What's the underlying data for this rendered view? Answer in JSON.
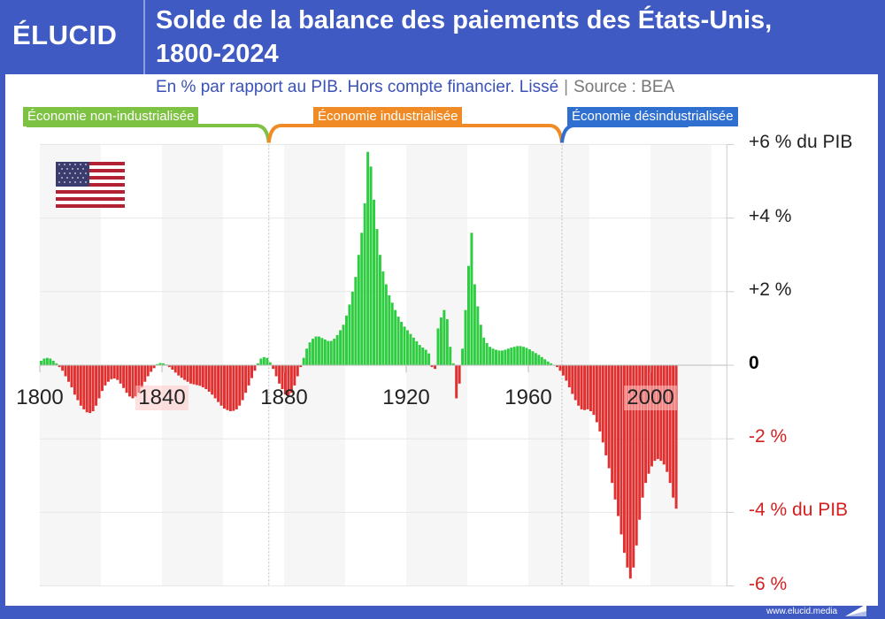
{
  "header": {
    "logo": "ÉLUCID",
    "title_line1": "Solde de la balance des paiements des États-Unis,",
    "title_line2": "1800-2024"
  },
  "subtitle": {
    "text": "En % par rapport au PIB. Hors compte financier. Lissé",
    "separator": "|",
    "source": "Source : BEA"
  },
  "eras": [
    {
      "label": "Économie non-industrialisée",
      "color": "#7dc242",
      "start": 1800,
      "end": 1875
    },
    {
      "label": "Économie industrialisée",
      "color": "#f08a24",
      "start": 1875,
      "end": 1971
    },
    {
      "label": "Économie désindustrialisée",
      "color": "#2f6fd0",
      "start": 1971,
      "end": 2024
    }
  ],
  "footer": {
    "url": "www.elucid.media"
  },
  "colors": {
    "positive": "#2ecc40",
    "negative": "#e03030",
    "brand": "#3f5ac3",
    "stripe": "#f6f6f6"
  },
  "chart_data": {
    "type": "bar",
    "title": "Solde de la balance des paiements des États-Unis, 1800-2024",
    "subtitle": "En % par rapport au PIB. Hors compte financier. Lissé | Source : BEA",
    "xlabel": "",
    "ylabel": "% du PIB",
    "xlim": [
      1800,
      2024
    ],
    "ylim": [
      -6,
      6
    ],
    "x_ticks": [
      1800,
      1840,
      1880,
      1920,
      1960,
      2000
    ],
    "y_ticks": [
      {
        "value": 6,
        "label": "+6 % du PIB",
        "color": "#222222"
      },
      {
        "value": 4,
        "label": "+4 %",
        "color": "#222222"
      },
      {
        "value": 2,
        "label": "+2 %",
        "color": "#222222"
      },
      {
        "value": 0,
        "label": "0",
        "color": "#000000"
      },
      {
        "value": -2,
        "label": "-2 %",
        "color": "#d42020"
      },
      {
        "value": -4,
        "label": "-4 % du PIB",
        "color": "#d42020"
      },
      {
        "value": -6,
        "label": "-6 %",
        "color": "#d42020"
      }
    ],
    "grid": true,
    "legend": "none",
    "annotations": [
      "Économie non-industrialisée",
      "Économie industrialisée",
      "Économie désindustrialisée"
    ],
    "dividers": [
      1875,
      1971
    ],
    "x_start": 1800,
    "values": [
      0.12,
      0.18,
      0.2,
      0.18,
      0.12,
      0.05,
      -0.05,
      -0.15,
      -0.3,
      -0.45,
      -0.6,
      -0.8,
      -0.95,
      -1.1,
      -1.2,
      -1.28,
      -1.3,
      -1.25,
      -1.1,
      -0.9,
      -0.7,
      -0.55,
      -0.45,
      -0.38,
      -0.36,
      -0.4,
      -0.5,
      -0.62,
      -0.75,
      -0.85,
      -0.9,
      -0.85,
      -0.75,
      -0.6,
      -0.45,
      -0.3,
      -0.18,
      -0.08,
      0.03,
      0.06,
      0.05,
      0.02,
      -0.05,
      -0.12,
      -0.2,
      -0.28,
      -0.34,
      -0.4,
      -0.45,
      -0.5,
      -0.52,
      -0.54,
      -0.56,
      -0.6,
      -0.65,
      -0.72,
      -0.8,
      -0.9,
      -1.0,
      -1.1,
      -1.18,
      -1.22,
      -1.25,
      -1.24,
      -1.2,
      -1.1,
      -0.95,
      -0.75,
      -0.55,
      -0.35,
      -0.15,
      0.05,
      0.18,
      0.22,
      0.2,
      0.08,
      -0.1,
      -0.3,
      -0.5,
      -0.65,
      -0.8,
      -0.85,
      -0.75,
      -0.55,
      -0.3,
      -0.05,
      0.2,
      0.45,
      0.62,
      0.72,
      0.78,
      0.78,
      0.74,
      0.7,
      0.66,
      0.66,
      0.72,
      0.82,
      0.95,
      1.1,
      1.35,
      1.65,
      2.0,
      2.4,
      3.0,
      3.6,
      4.4,
      5.8,
      5.4,
      4.5,
      3.7,
      3.0,
      2.55,
      2.2,
      1.9,
      1.7,
      1.5,
      1.32,
      1.18,
      1.05,
      0.95,
      0.85,
      0.75,
      0.65,
      0.55,
      0.48,
      0.42,
      0.32,
      -0.05,
      -0.1,
      1.0,
      1.3,
      1.5,
      1.25,
      0.5,
      0.05,
      -0.9,
      -0.5,
      0.45,
      1.5,
      2.7,
      3.6,
      2.2,
      1.6,
      1.1,
      0.75,
      0.6,
      0.5,
      0.45,
      0.42,
      0.4,
      0.4,
      0.42,
      0.45,
      0.48,
      0.5,
      0.52,
      0.52,
      0.5,
      0.47,
      0.43,
      0.38,
      0.33,
      0.28,
      0.22,
      0.16,
      0.1,
      0.05,
      0.0,
      -0.05,
      -0.15,
      -0.28,
      -0.42,
      -0.6,
      -0.78,
      -0.95,
      -1.1,
      -1.2,
      -1.22,
      -1.2,
      -1.25,
      -1.35,
      -1.55,
      -1.8,
      -2.1,
      -2.45,
      -2.8,
      -3.2,
      -3.65,
      -4.1,
      -4.6,
      -5.1,
      -5.5,
      -5.8,
      -5.5,
      -4.9,
      -4.2,
      -3.6,
      -3.2,
      -2.95,
      -2.75,
      -2.6,
      -2.55,
      -2.6,
      -2.7,
      -2.9,
      -3.2,
      -3.6,
      -3.9
    ]
  }
}
